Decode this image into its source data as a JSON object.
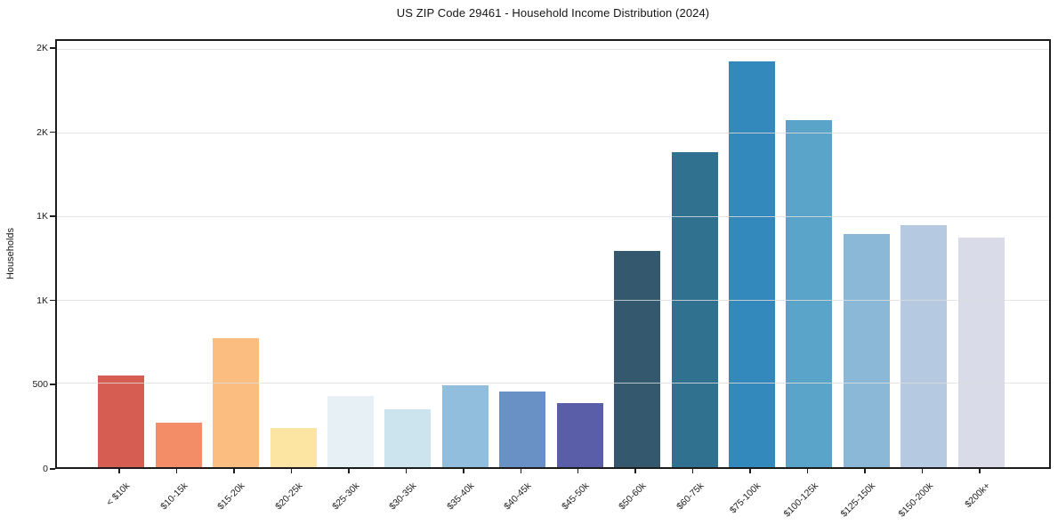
{
  "chart_data": {
    "type": "bar",
    "title": "US ZIP Code 29461 - Household Income Distribution (2024)",
    "xlabel": "",
    "ylabel": "Households",
    "categories": [
      "< $10k",
      "$10-15k",
      "$15-20k",
      "$20-25k",
      "$25-30k",
      "$30-35k",
      "$35-40k",
      "$40-45k",
      "$45-50k",
      "$50-60k",
      "$60-75k",
      "$75-100k",
      "$100-125k",
      "$125-150k",
      "$150-200k",
      "$200k+"
    ],
    "values": [
      550,
      265,
      775,
      235,
      425,
      345,
      490,
      455,
      385,
      1295,
      1890,
      2430,
      2080,
      1400,
      1450,
      1375
    ],
    "bar_colors": [
      "#d55d51",
      "#f28d67",
      "#fbbd80",
      "#fce5a3",
      "#e7f1f5",
      "#cce4ee",
      "#92bede",
      "#6991c6",
      "#5a5ea9",
      "#34596e",
      "#2f718f",
      "#3389bc",
      "#5ba4c9",
      "#8cb8d8",
      "#b5c9e0",
      "#d9dbe8"
    ],
    "ylim": [
      0,
      2555
    ],
    "yticks": [
      {
        "value": 0,
        "label": "0"
      },
      {
        "value": 500,
        "label": "500"
      },
      {
        "value": 1000,
        "label": "1K"
      },
      {
        "value": 1500,
        "label": "1K"
      },
      {
        "value": 2000,
        "label": "2K"
      },
      {
        "value": 2500,
        "label": "2K"
      }
    ],
    "grid": "horizontal",
    "legend": "none",
    "x_tick_rotation_deg": 45,
    "background_color": "#ffffff",
    "spine_color": "#1c1c1c",
    "gridline_color": "#dedede"
  }
}
